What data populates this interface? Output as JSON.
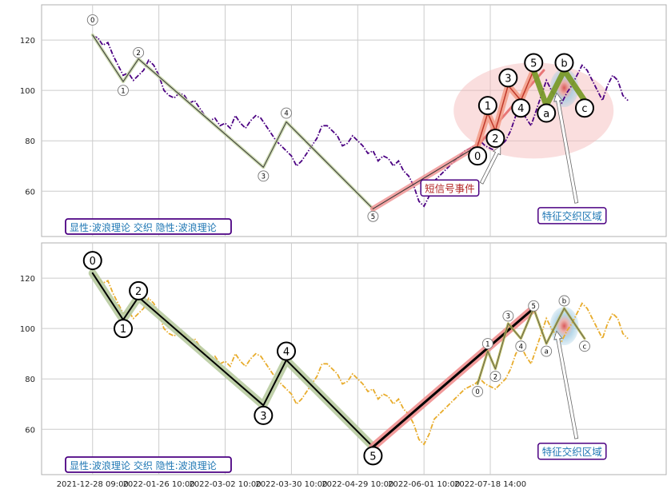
{
  "chart_data": [
    {
      "type": "line",
      "panel": "top",
      "ylim": [
        42,
        134
      ],
      "yticks": [
        60,
        80,
        100,
        120
      ],
      "series": [
        {
          "color": "#4b0082",
          "style": "dash-dot",
          "x": [
            0,
            2,
            4,
            6,
            8,
            10,
            12,
            14,
            16,
            18,
            20,
            22,
            24,
            26,
            28,
            30,
            32,
            34,
            36,
            38,
            40,
            42,
            44,
            46,
            48,
            50,
            52,
            54,
            56,
            58,
            60,
            62,
            64,
            66,
            68,
            70,
            72,
            74,
            76,
            78,
            80,
            82,
            84,
            86,
            88,
            90,
            92,
            94,
            96,
            98,
            100,
            102,
            104,
            106,
            108,
            110,
            112,
            114,
            116,
            118,
            120,
            122,
            124,
            126,
            128,
            130,
            132,
            134,
            136,
            138,
            140,
            142,
            144,
            146,
            148,
            150,
            152,
            154,
            156,
            158,
            160,
            162,
            164,
            166,
            168,
            170,
            172,
            174,
            176,
            178,
            180,
            182,
            184,
            186,
            188,
            190,
            192,
            194,
            196,
            198,
            200,
            202,
            204,
            206,
            208,
            210
          ],
          "y": [
            121.5,
            121,
            118,
            119,
            114,
            110,
            106,
            107,
            104,
            106,
            108,
            112,
            110,
            106,
            100,
            98,
            97,
            99,
            98,
            95,
            96,
            93,
            90,
            88,
            89,
            86,
            87,
            85,
            90,
            87,
            85,
            88,
            90,
            89,
            86,
            83,
            80,
            78,
            76,
            74,
            70,
            72,
            75,
            78,
            81,
            86,
            86,
            84,
            82,
            78,
            79,
            82,
            80,
            78,
            75,
            76,
            72,
            74,
            73,
            70,
            72,
            68,
            66,
            62,
            56,
            54,
            58,
            64,
            66,
            68,
            70,
            72,
            74,
            76,
            77,
            78,
            80,
            78,
            77,
            76,
            78,
            80,
            84,
            90,
            93,
            89,
            86,
            92,
            98,
            104,
            100,
            97,
            95,
            99,
            102,
            106,
            110,
            108,
            104,
            100,
            96,
            102,
            106,
            104,
            98,
            96
          ]
        }
      ],
      "waves": [
        {
          "style": "thin",
          "points": [
            [
              0,
              122
            ],
            [
              12,
              103.5
            ],
            [
              18,
              112.5
            ],
            [
              67,
              69.5
            ],
            [
              76,
              87.5
            ],
            [
              110,
              53
            ]
          ]
        },
        {
          "style": "thick-red",
          "points": [
            [
              110,
              53
            ],
            [
              151,
              78
            ]
          ]
        },
        {
          "style": "medium-red",
          "points": [
            [
              151,
              78
            ],
            [
              177,
              108
            ]
          ]
        },
        {
          "style": "thick-salmon",
          "points": [
            [
              151,
              78
            ],
            [
              155,
              91
            ],
            [
              158,
              84
            ],
            [
              163,
              102
            ],
            [
              168,
              96
            ],
            [
              173,
              108
            ]
          ]
        },
        {
          "style": "thick-green",
          "points": [
            [
              173,
              108
            ],
            [
              178,
              94
            ],
            [
              185,
              108
            ],
            [
              193,
              96
            ]
          ]
        }
      ],
      "wave_labels": [
        {
          "text": "0",
          "x": 0,
          "y": 128,
          "size": "small"
        },
        {
          "text": "1",
          "x": 12,
          "y": 100,
          "size": "small"
        },
        {
          "text": "2",
          "x": 18,
          "y": 115,
          "size": "small"
        },
        {
          "text": "3",
          "x": 67,
          "y": 66,
          "size": "small"
        },
        {
          "text": "4",
          "x": 76,
          "y": 91,
          "size": "small"
        },
        {
          "text": "5",
          "x": 110,
          "y": 50,
          "size": "small"
        },
        {
          "text": "0",
          "x": 151,
          "y": 74,
          "size": "large"
        },
        {
          "text": "1",
          "x": 155,
          "y": 94,
          "size": "large"
        },
        {
          "text": "2",
          "x": 158,
          "y": 81,
          "size": "large"
        },
        {
          "text": "3",
          "x": 163,
          "y": 105,
          "size": "large"
        },
        {
          "text": "4",
          "x": 168,
          "y": 93,
          "size": "large"
        },
        {
          "text": "5",
          "x": 173,
          "y": 111,
          "size": "large"
        },
        {
          "text": "a",
          "x": 178,
          "y": 91,
          "size": "large"
        },
        {
          "text": "b",
          "x": 185,
          "y": 111,
          "size": "large"
        },
        {
          "text": "c",
          "x": 193,
          "y": 93,
          "size": "large"
        }
      ],
      "annotations": [
        {
          "text": "短信号事件",
          "x": 130,
          "y": 60,
          "color": "#b22222",
          "arrow_to": [
            160,
            78
          ]
        },
        {
          "text": "特征交织区域",
          "x": 176,
          "y": 49,
          "color": "#1f77b4",
          "arrow_to": [
            182,
            99
          ]
        }
      ],
      "caption": "显性:波浪理论 交织 隐性:波浪理论"
    },
    {
      "type": "line",
      "panel": "bottom",
      "ylim": [
        42,
        134
      ],
      "yticks": [
        60,
        80,
        100,
        120
      ],
      "xticks": [
        "2021-12-28 09:00",
        "2022-01-26 10:00",
        "2022-03-02 10:00",
        "2022-03-30 10:00",
        "2022-04-29 10:00",
        "2022-06-01 10:00",
        "2022-07-18 14:00"
      ],
      "series": [
        {
          "color": "#e8ac2c",
          "style": "dash-dot",
          "x": [
            0,
            2,
            4,
            6,
            8,
            10,
            12,
            14,
            16,
            18,
            20,
            22,
            24,
            26,
            28,
            30,
            32,
            34,
            36,
            38,
            40,
            42,
            44,
            46,
            48,
            50,
            52,
            54,
            56,
            58,
            60,
            62,
            64,
            66,
            68,
            70,
            72,
            74,
            76,
            78,
            80,
            82,
            84,
            86,
            88,
            90,
            92,
            94,
            96,
            98,
            100,
            102,
            104,
            106,
            108,
            110,
            112,
            114,
            116,
            118,
            120,
            122,
            124,
            126,
            128,
            130,
            132,
            134,
            136,
            138,
            140,
            142,
            144,
            146,
            148,
            150,
            152,
            154,
            156,
            158,
            160,
            162,
            164,
            166,
            168,
            170,
            172,
            174,
            176,
            178,
            180,
            182,
            184,
            186,
            188,
            190,
            192,
            194,
            196,
            198,
            200,
            202,
            204,
            206,
            208,
            210
          ],
          "y": [
            121.5,
            121,
            118,
            119,
            114,
            110,
            106,
            107,
            104,
            106,
            108,
            112,
            110,
            106,
            100,
            98,
            97,
            99,
            98,
            95,
            96,
            93,
            90,
            88,
            89,
            86,
            87,
            85,
            90,
            87,
            85,
            88,
            90,
            89,
            86,
            83,
            80,
            78,
            76,
            74,
            70,
            72,
            75,
            78,
            81,
            86,
            86,
            84,
            82,
            78,
            79,
            82,
            80,
            78,
            75,
            76,
            72,
            74,
            73,
            70,
            72,
            68,
            66,
            62,
            56,
            54,
            58,
            64,
            66,
            68,
            70,
            72,
            74,
            76,
            77,
            78,
            80,
            78,
            77,
            76,
            78,
            80,
            84,
            90,
            93,
            89,
            86,
            92,
            98,
            104,
            100,
            97,
            95,
            99,
            102,
            106,
            110,
            108,
            104,
            100,
            96,
            102,
            106,
            104,
            98,
            96
          ]
        }
      ],
      "waves": [
        {
          "style": "thick-black",
          "points": [
            [
              0,
              122
            ],
            [
              12,
              103.5
            ],
            [
              18,
              112.5
            ],
            [
              67,
              69.5
            ],
            [
              76,
              87.5
            ],
            [
              110,
              53
            ]
          ]
        },
        {
          "style": "thick-red-black",
          "points": [
            [
              110,
              53
            ],
            [
              173,
              108
            ]
          ]
        },
        {
          "style": "thin-olive",
          "points": [
            [
              151,
              78
            ],
            [
              155,
              91
            ],
            [
              158,
              84
            ],
            [
              163,
              102
            ],
            [
              168,
              96
            ],
            [
              173,
              108
            ],
            [
              178,
              94
            ],
            [
              185,
              108
            ],
            [
              193,
              96
            ]
          ]
        }
      ],
      "wave_labels": [
        {
          "text": "0",
          "x": 0,
          "y": 127,
          "size": "large"
        },
        {
          "text": "1",
          "x": 12,
          "y": 100,
          "size": "large"
        },
        {
          "text": "2",
          "x": 18,
          "y": 115,
          "size": "large"
        },
        {
          "text": "3",
          "x": 67,
          "y": 65.5,
          "size": "large"
        },
        {
          "text": "4",
          "x": 76,
          "y": 91,
          "size": "large"
        },
        {
          "text": "5",
          "x": 110,
          "y": 49.5,
          "size": "large"
        },
        {
          "text": "0",
          "x": 151,
          "y": 75,
          "size": "small"
        },
        {
          "text": "1",
          "x": 155,
          "y": 94,
          "size": "small"
        },
        {
          "text": "2",
          "x": 158,
          "y": 81,
          "size": "small"
        },
        {
          "text": "3",
          "x": 163,
          "y": 105,
          "size": "small"
        },
        {
          "text": "4",
          "x": 168,
          "y": 93,
          "size": "small"
        },
        {
          "text": "5",
          "x": 173,
          "y": 109,
          "size": "small"
        },
        {
          "text": "a",
          "x": 178,
          "y": 91,
          "size": "small"
        },
        {
          "text": "b",
          "x": 185,
          "y": 111,
          "size": "small"
        },
        {
          "text": "c",
          "x": 193,
          "y": 93,
          "size": "small"
        }
      ],
      "annotations": [
        {
          "text": "特征交织区域",
          "x": 176,
          "y": 50,
          "color": "#1f77b4",
          "arrow_to": [
            182,
            99
          ]
        }
      ],
      "caption": "显性:波浪理论 交织 隐性:波浪理论"
    }
  ],
  "colors": {
    "grid": "#cccccc",
    "axes": "#b0b0b0",
    "tick_text": "#222222",
    "caption_text": "#1f77b4",
    "caption_border": "#4b0082",
    "signal_text": "#b22222",
    "feature_text": "#1f77b4",
    "ellipse": "#f4b6b6",
    "feature_blue": "#9ecae1"
  }
}
